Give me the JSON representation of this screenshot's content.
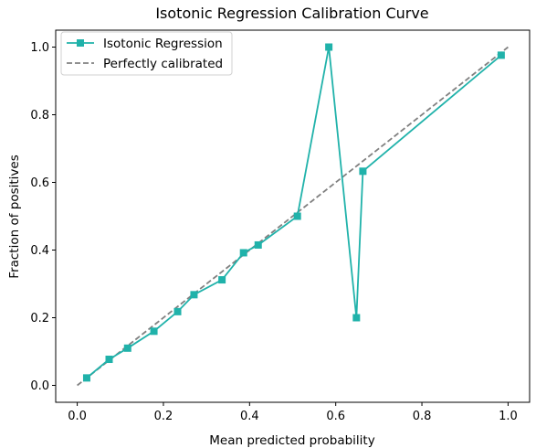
{
  "chart_data": {
    "type": "line",
    "title": "Isotonic Regression Calibration Curve",
    "xlabel": "Mean predicted probability",
    "ylabel": "Fraction of positives",
    "xlim": [
      -0.05,
      1.05
    ],
    "ylim": [
      -0.05,
      1.05
    ],
    "xticks": [
      "0.0",
      "0.2",
      "0.4",
      "0.6",
      "0.8",
      "1.0"
    ],
    "yticks": [
      "0.0",
      "0.2",
      "0.4",
      "0.6",
      "0.8",
      "1.0"
    ],
    "grid": false,
    "legend_position": "upper-left",
    "series": [
      {
        "name": "Isotonic Regression",
        "color": "#20b2aa",
        "marker": "square",
        "linestyle": "solid",
        "x": [
          0.022,
          0.074,
          0.117,
          0.178,
          0.233,
          0.271,
          0.336,
          0.386,
          0.42,
          0.511,
          0.584,
          0.648,
          0.663,
          0.984
        ],
        "y": [
          0.022,
          0.077,
          0.11,
          0.16,
          0.218,
          0.268,
          0.312,
          0.392,
          0.415,
          0.5,
          1.0,
          0.2,
          0.633,
          0.976
        ]
      },
      {
        "name": "Perfectly calibrated",
        "color": "#808080",
        "marker": "none",
        "linestyle": "dashed",
        "x": [
          0,
          1
        ],
        "y": [
          0,
          1
        ]
      }
    ]
  }
}
